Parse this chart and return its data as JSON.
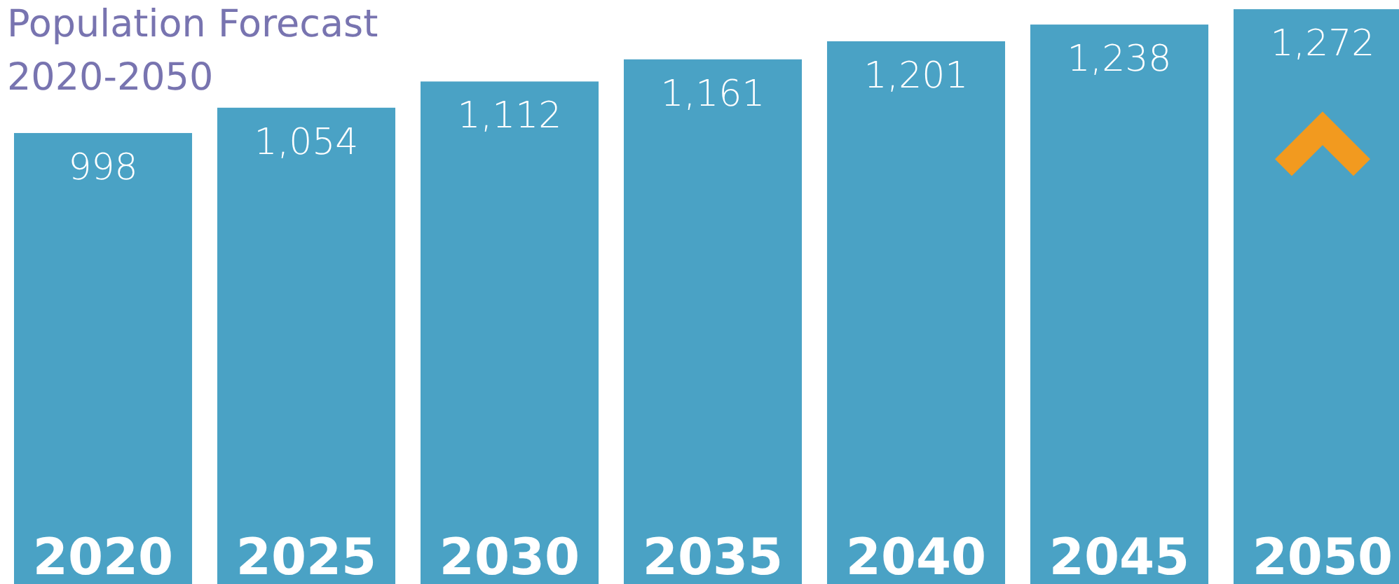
{
  "chart_data": {
    "type": "bar",
    "title": "Population Forecast",
    "subtitle": "2020-2050",
    "categories": [
      "2020",
      "2025",
      "2030",
      "2035",
      "2040",
      "2045",
      "2050"
    ],
    "values": [
      998,
      1054,
      1112,
      1161,
      1201,
      1238,
      1272
    ],
    "value_labels": [
      "998",
      "1,054",
      "1,112",
      "1,161",
      "1,201",
      "1,238",
      "1,272"
    ],
    "color": "#4aa2c5",
    "tick_labels": "x"
  }
}
